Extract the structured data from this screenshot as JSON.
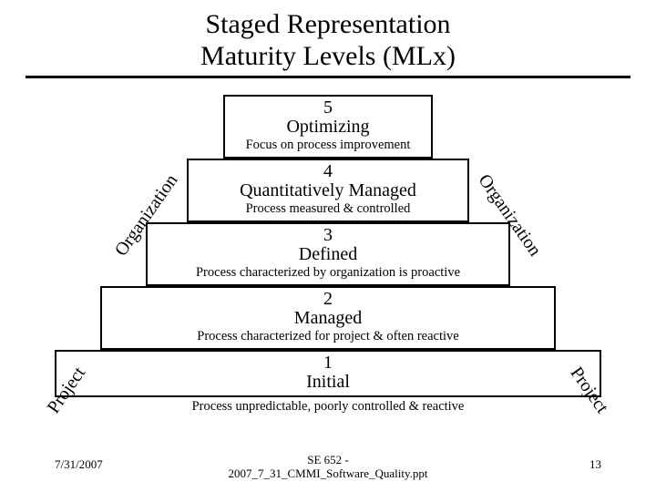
{
  "title": {
    "line1": "Staged Representation",
    "line2": "Maturity Levels (MLx)"
  },
  "levels": {
    "l5": {
      "num": "5",
      "name": "Optimizing",
      "desc": "Focus on process improvement"
    },
    "l4": {
      "num": "4",
      "name": "Quantitatively Managed",
      "desc": "Process measured & controlled"
    },
    "l3": {
      "num": "3",
      "name": "Defined",
      "desc": "Process characterized by organization is proactive"
    },
    "l2": {
      "num": "2",
      "name": "Managed",
      "desc": "Process characterized for project & often reactive"
    },
    "l1": {
      "num": "1",
      "name": "Initial",
      "desc": "Process unpredictable, poorly controlled & reactive"
    }
  },
  "sideLabels": {
    "organization": "Organization",
    "project": "Project"
  },
  "footer": {
    "date": "7/31/2007",
    "mid1": "SE 652 -",
    "mid2": "2007_7_31_CMMI_Software_Quality.ppt",
    "page": "13"
  },
  "style": {
    "background": "#ffffff",
    "text": "#000000",
    "border": "#000000",
    "font": "Times New Roman",
    "titleFontSize": 30,
    "levelFontSize": 20,
    "descFontSize": 14.5,
    "footerFontSize": 13,
    "levelWidths": {
      "l5": 230,
      "l4": 310,
      "l3": 400,
      "l2": 500,
      "l1": 600
    },
    "levelTops": {
      "l5": 0,
      "l4": 70,
      "l3": 140,
      "l2": 210,
      "l1": 280
    },
    "hrThickness": 3
  }
}
